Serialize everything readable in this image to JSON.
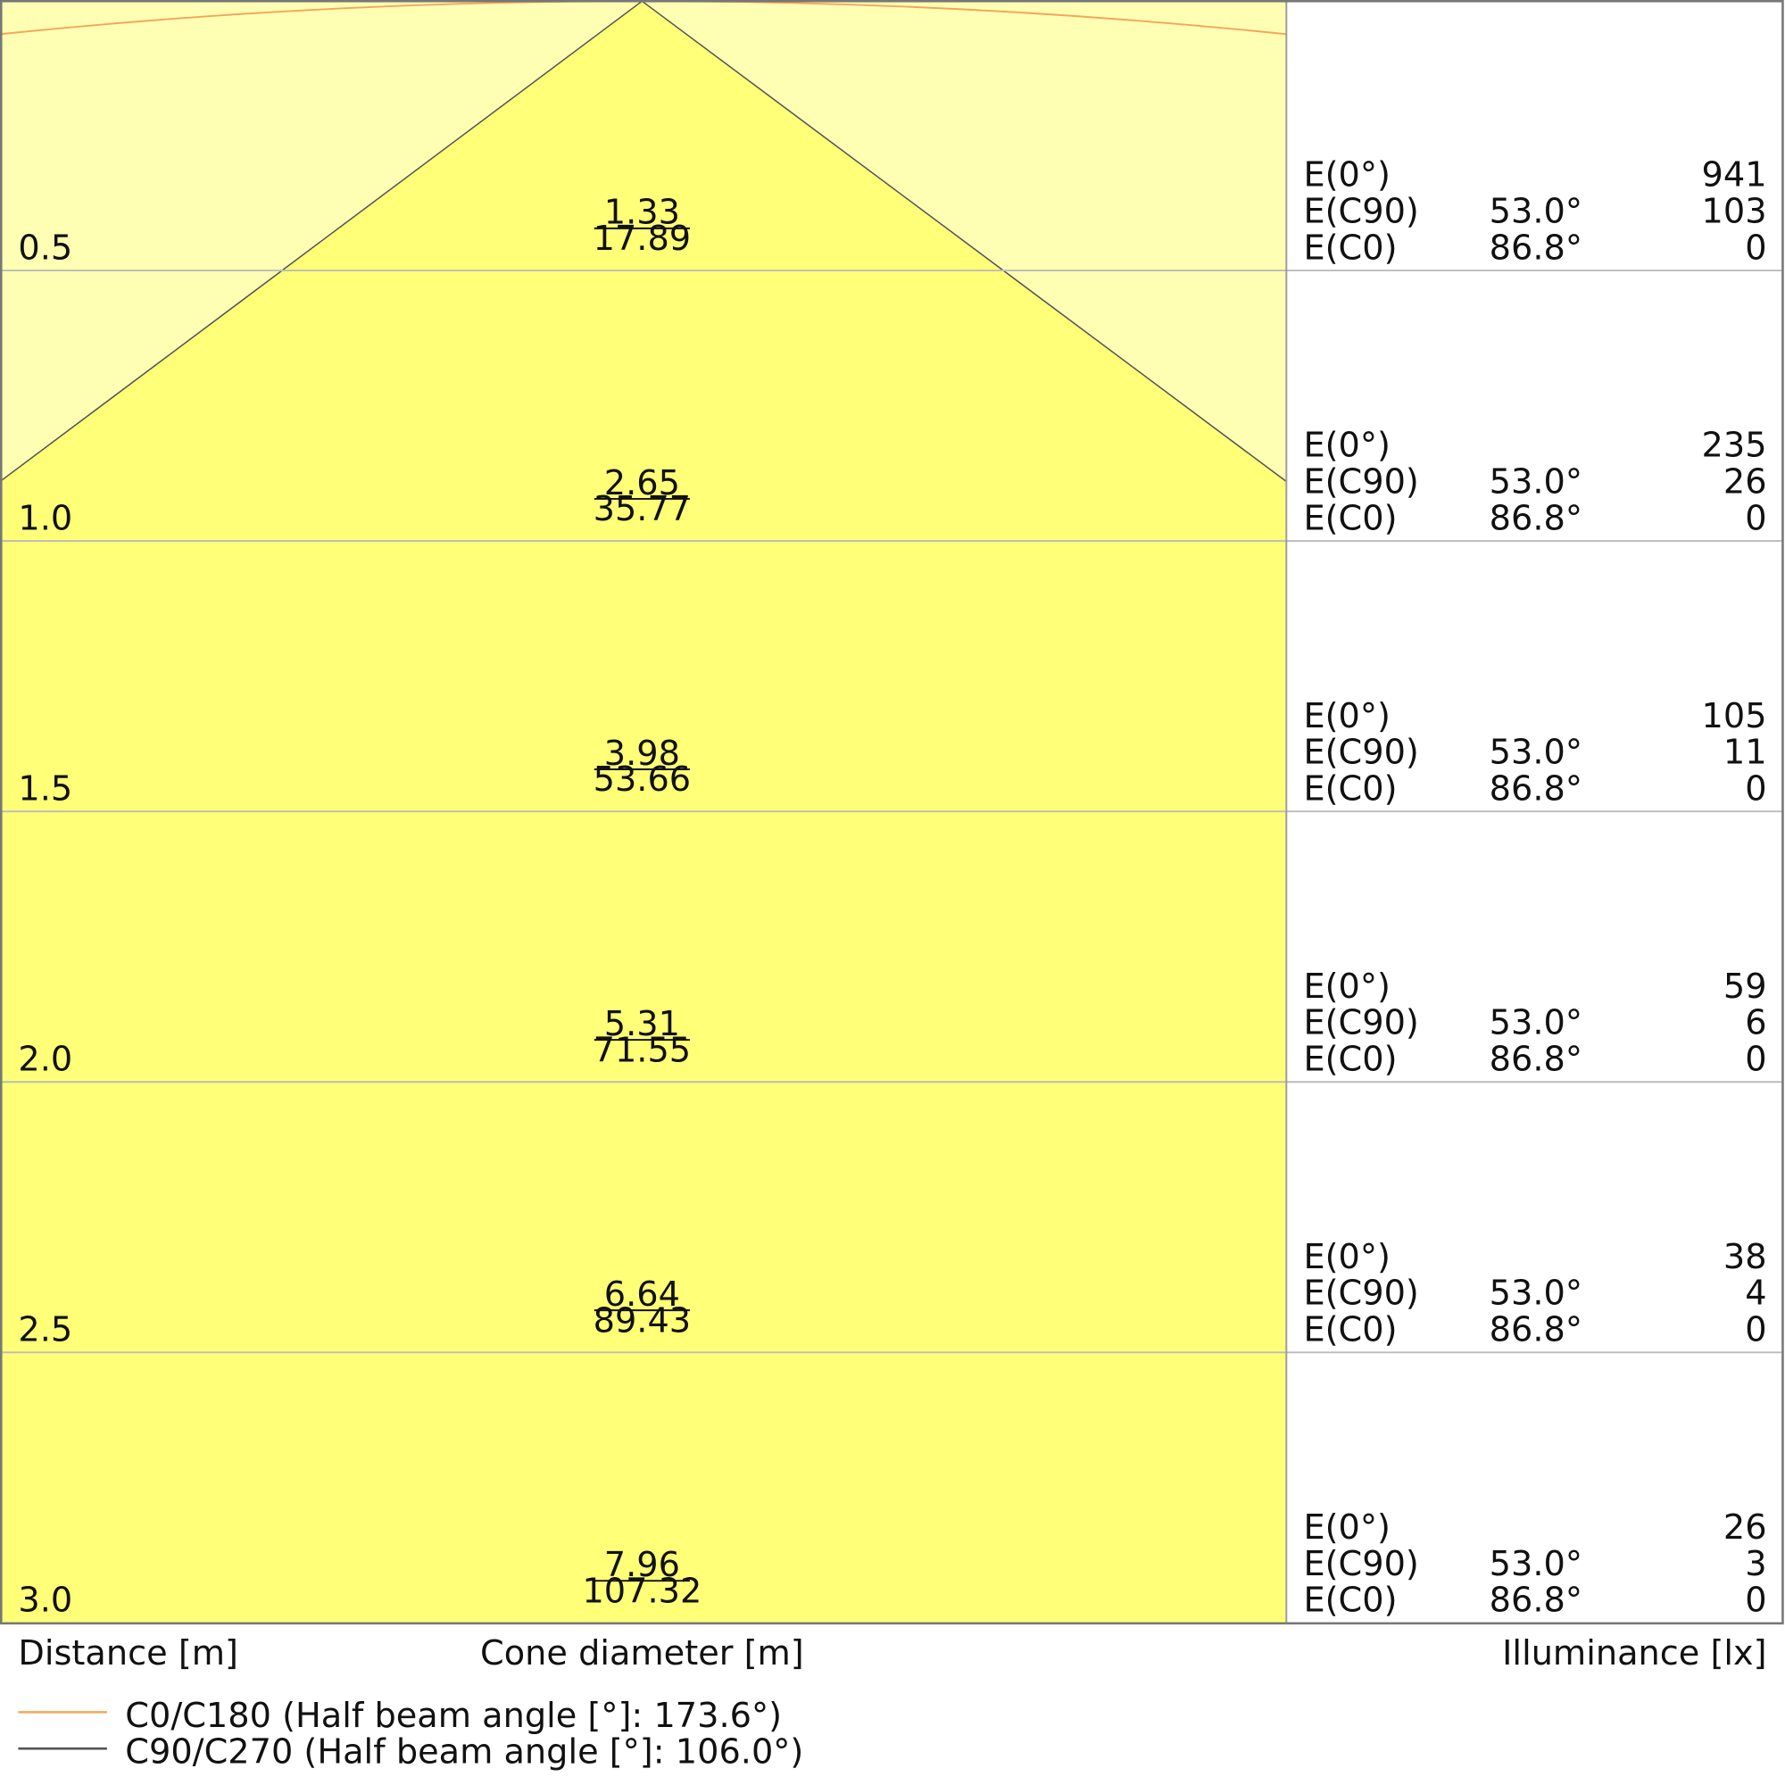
{
  "rows": [
    {
      "distance": "0.5",
      "c90_diameter": "1.33",
      "c0_diameter": "17.89",
      "e0": {
        "label": "E(0°)",
        "value": "941"
      },
      "ec90": {
        "label": "E(C90)",
        "angle": "53.0°",
        "value": "103"
      },
      "ec0": {
        "label": "E(C0)",
        "angle": "86.8°",
        "value": "0"
      }
    },
    {
      "distance": "1.0",
      "c90_diameter": "2.65",
      "c0_diameter": "35.77",
      "e0": {
        "label": "E(0°)",
        "value": "235"
      },
      "ec90": {
        "label": "E(C90)",
        "angle": "53.0°",
        "value": "26"
      },
      "ec0": {
        "label": "E(C0)",
        "angle": "86.8°",
        "value": "0"
      }
    },
    {
      "distance": "1.5",
      "c90_diameter": "3.98",
      "c0_diameter": "53.66",
      "e0": {
        "label": "E(0°)",
        "value": "105"
      },
      "ec90": {
        "label": "E(C90)",
        "angle": "53.0°",
        "value": "11"
      },
      "ec0": {
        "label": "E(C0)",
        "angle": "86.8°",
        "value": "0"
      }
    },
    {
      "distance": "2.0",
      "c90_diameter": "5.31",
      "c0_diameter": "71.55",
      "e0": {
        "label": "E(0°)",
        "value": "59"
      },
      "ec90": {
        "label": "E(C90)",
        "angle": "53.0°",
        "value": "6"
      },
      "ec0": {
        "label": "E(C0)",
        "angle": "86.8°",
        "value": "0"
      }
    },
    {
      "distance": "2.5",
      "c90_diameter": "6.64",
      "c0_diameter": "89.43",
      "e0": {
        "label": "E(0°)",
        "value": "38"
      },
      "ec90": {
        "label": "E(C90)",
        "angle": "53.0°",
        "value": "4"
      },
      "ec0": {
        "label": "E(C0)",
        "angle": "86.8°",
        "value": "0"
      }
    },
    {
      "distance": "3.0",
      "c90_diameter": "7.96",
      "c0_diameter": "107.32",
      "e0": {
        "label": "E(0°)",
        "value": "26"
      },
      "ec90": {
        "label": "E(C90)",
        "angle": "53.0°",
        "value": "3"
      },
      "ec0": {
        "label": "E(C0)",
        "angle": "86.8°",
        "value": "0"
      }
    }
  ],
  "footer": {
    "distance_label": "Distance [m]",
    "cone_label": "Cone diameter [m]",
    "illuminance_label": "Illuminance [lx]"
  },
  "legend": [
    {
      "name": "C0/C180 (Half beam angle [°]: 173.6°)",
      "color": "#f5a55a"
    },
    {
      "name": "C90/C270 (Half beam angle [°]: 106.0°)",
      "color": "#555555"
    }
  ]
}
